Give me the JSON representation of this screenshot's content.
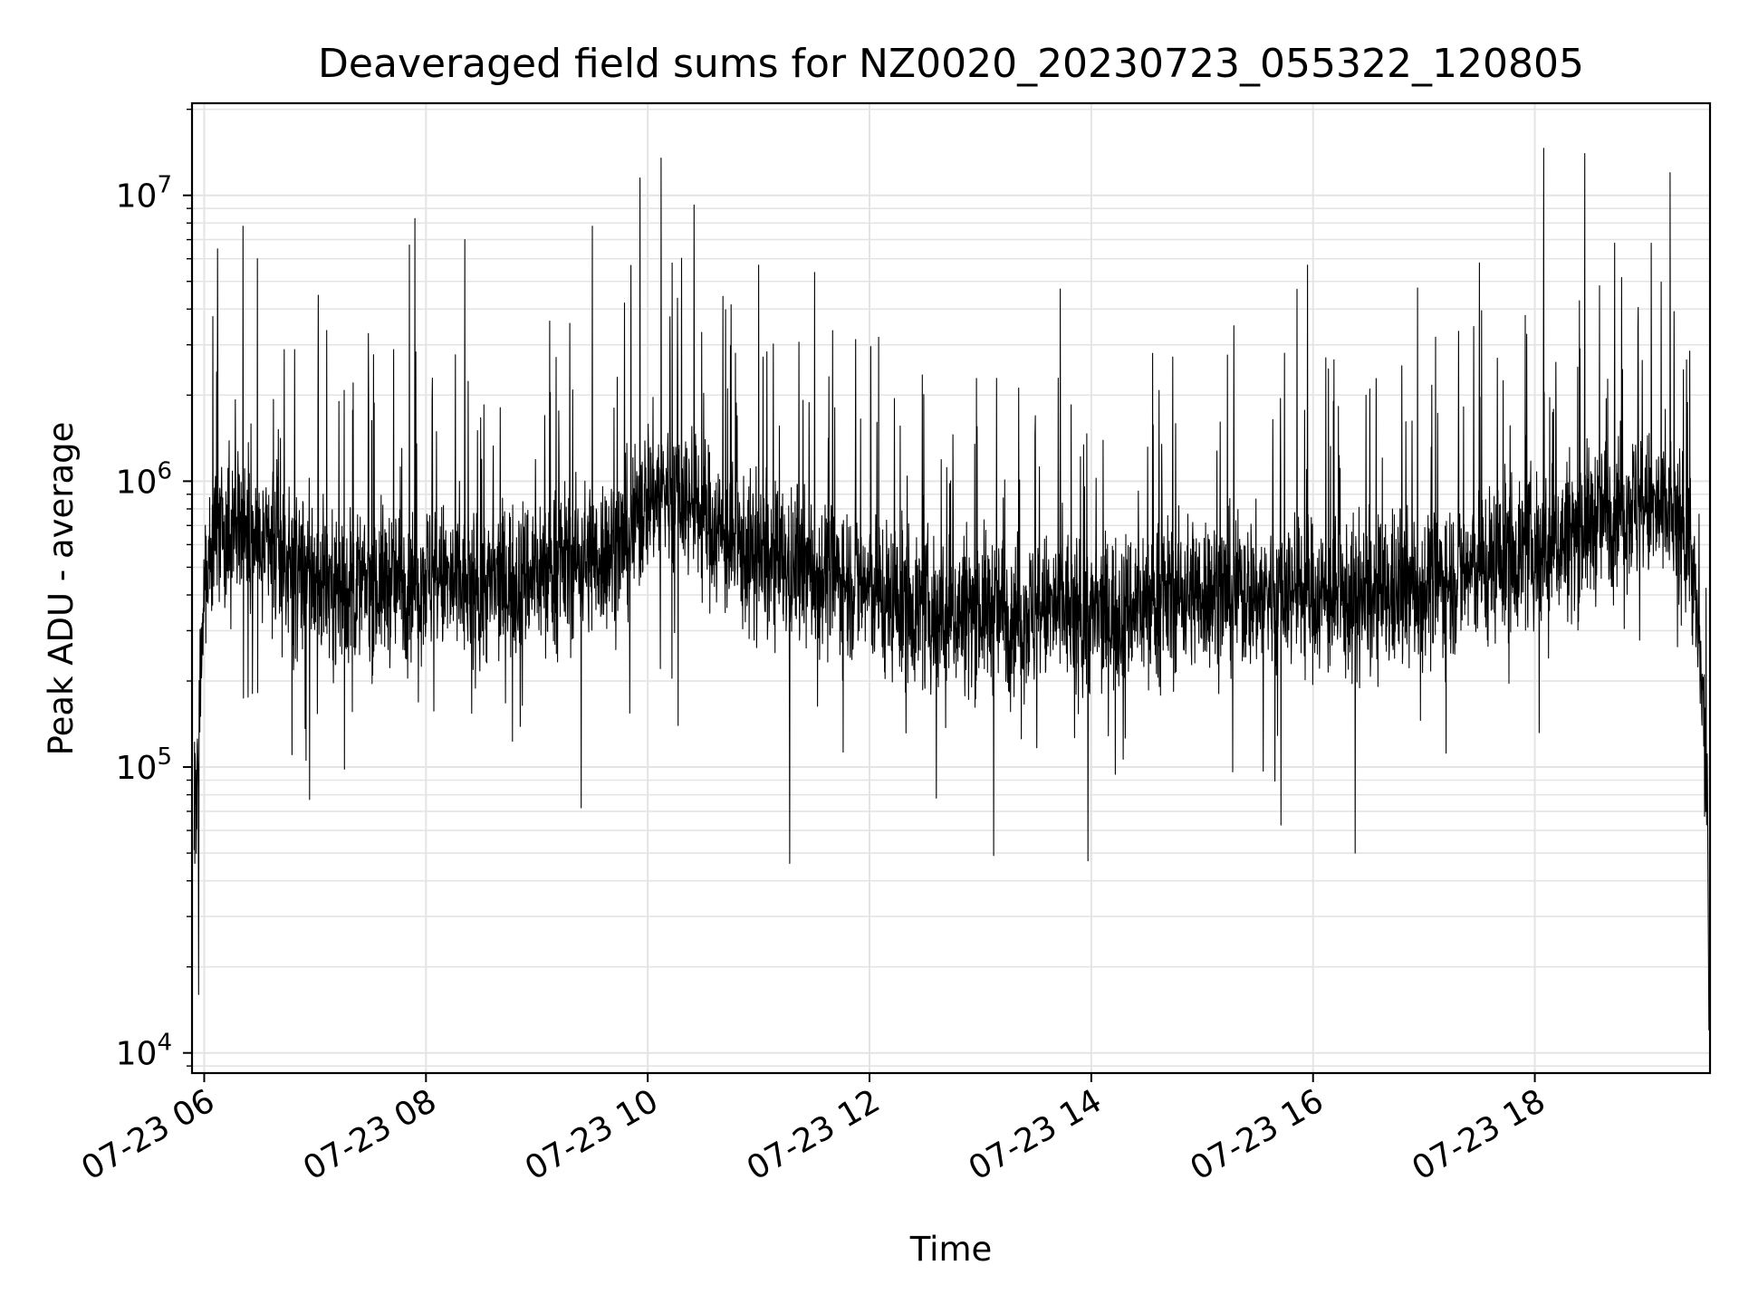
{
  "chart_data": {
    "type": "line",
    "title": "Deaveraged field sums for NZ0020_20230723_055322_120805",
    "xlabel": "Time",
    "ylabel": "Peak ADU - average",
    "yscale": "log",
    "ylim": [
      8500,
      21000000
    ],
    "xlim_hours": [
      5.89,
      19.58
    ],
    "grid": true,
    "legend": "none",
    "line_color": "#000000",
    "x_ticks": [
      {
        "hour": 6,
        "label": "07-23 06"
      },
      {
        "hour": 8,
        "label": "07-23 08"
      },
      {
        "hour": 10,
        "label": "07-23 10"
      },
      {
        "hour": 12,
        "label": "07-23 12"
      },
      {
        "hour": 14,
        "label": "07-23 14"
      },
      {
        "hour": 16,
        "label": "07-23 16"
      },
      {
        "hour": 18,
        "label": "07-23 18"
      }
    ],
    "y_ticks": [
      {
        "value": 10000,
        "base": "10",
        "exp": "4"
      },
      {
        "value": 100000,
        "base": "10",
        "exp": "5"
      },
      {
        "value": 1000000,
        "base": "10",
        "exp": "6"
      },
      {
        "value": 10000000,
        "base": "10",
        "exp": "7"
      }
    ],
    "series": [
      {
        "x_hours": [
          5.89,
          5.95,
          6.0,
          6.1,
          6.25,
          6.4,
          6.5,
          6.75,
          7.0,
          7.25,
          7.5,
          7.75,
          8.0,
          8.25,
          8.5,
          8.75,
          9.0,
          9.25,
          9.5,
          9.75,
          9.9,
          10.0,
          10.25,
          10.5,
          10.75,
          11.0,
          11.25,
          11.5,
          11.75,
          12.0,
          12.25,
          12.5,
          12.75,
          13.0,
          13.25,
          13.5,
          13.75,
          14.0,
          14.25,
          14.5,
          14.75,
          15.0,
          15.25,
          15.5,
          15.75,
          16.0,
          16.25,
          16.5,
          16.75,
          17.0,
          17.25,
          17.5,
          17.75,
          18.0,
          18.25,
          18.5,
          18.75,
          19.0,
          19.25,
          19.4,
          19.5,
          19.58
        ],
        "values": [
          50000,
          120000,
          400000,
          650000,
          700000,
          620000,
          580000,
          520000,
          450000,
          420000,
          430000,
          450000,
          470000,
          430000,
          420000,
          450000,
          480000,
          520000,
          540000,
          600000,
          700000,
          900000,
          950000,
          750000,
          600000,
          520000,
          500000,
          480000,
          460000,
          420000,
          380000,
          350000,
          340000,
          360000,
          350000,
          340000,
          360000,
          330000,
          350000,
          380000,
          400000,
          420000,
          410000,
          400000,
          420000,
          400000,
          380000,
          380000,
          400000,
          430000,
          460000,
          500000,
          550000,
          580000,
          620000,
          700000,
          850000,
          800000,
          750000,
          650000,
          200000,
          60000
        ]
      }
    ],
    "spikes": [
      {
        "hour": 6.12,
        "value": 6500000
      },
      {
        "hour": 6.35,
        "value": 7800000
      },
      {
        "hour": 6.48,
        "value": 6000000
      },
      {
        "hour": 6.95,
        "value": 4400000
      },
      {
        "hour": 7.85,
        "value": 6700000
      },
      {
        "hour": 7.9,
        "value": 8300000
      },
      {
        "hour": 8.35,
        "value": 7000000
      },
      {
        "hour": 9.5,
        "value": 7800000
      },
      {
        "hour": 9.93,
        "value": 11500000
      },
      {
        "hour": 10.12,
        "value": 13500000
      },
      {
        "hour": 10.22,
        "value": 5800000
      },
      {
        "hour": 11.0,
        "value": 5700000
      },
      {
        "hour": 13.72,
        "value": 4700000
      },
      {
        "hour": 15.95,
        "value": 5700000
      },
      {
        "hour": 17.5,
        "value": 5800000
      },
      {
        "hour": 18.08,
        "value": 14600000
      },
      {
        "hour": 18.45,
        "value": 14000000
      },
      {
        "hour": 18.72,
        "value": 6800000
      },
      {
        "hour": 19.05,
        "value": 6800000
      },
      {
        "hour": 19.22,
        "value": 12000000
      }
    ],
    "dips": [
      {
        "hour": 5.95,
        "value": 16000
      },
      {
        "hour": 6.95,
        "value": 77000
      },
      {
        "hour": 9.4,
        "value": 72000
      },
      {
        "hour": 11.28,
        "value": 46000
      },
      {
        "hour": 13.12,
        "value": 49000
      },
      {
        "hour": 13.97,
        "value": 47000
      },
      {
        "hour": 16.38,
        "value": 50000
      },
      {
        "hour": 19.57,
        "value": 12000
      }
    ]
  }
}
